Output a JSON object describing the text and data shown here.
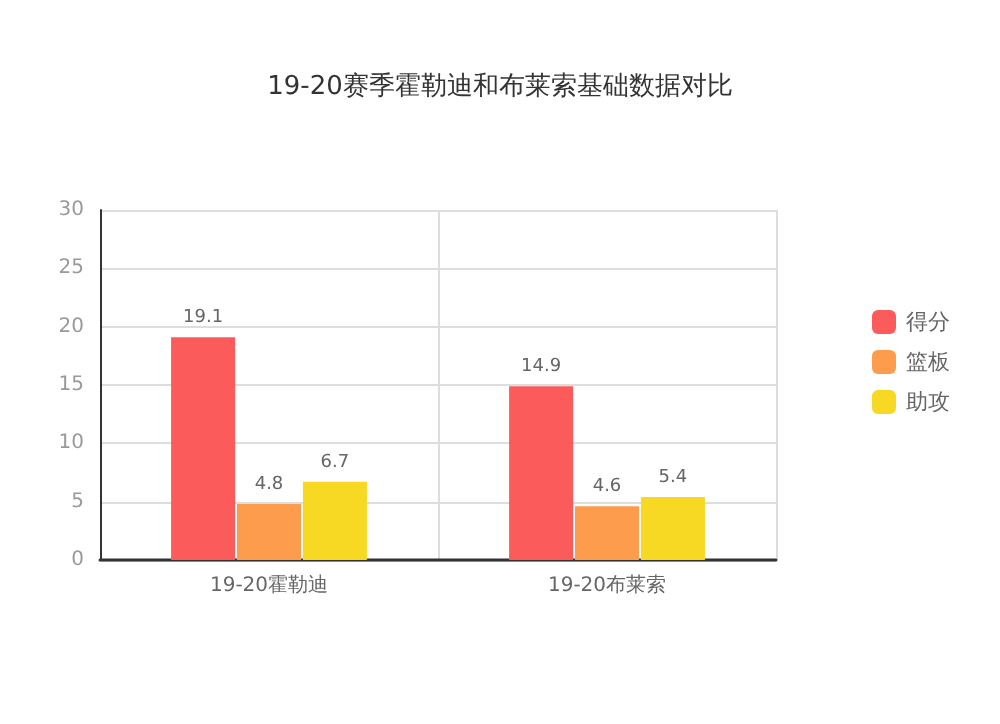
{
  "chart_data": {
    "type": "bar",
    "title": "19-20赛季霍勒迪和布莱索基础数据对比",
    "categories": [
      "19-20霍勒迪",
      "19-20布莱索"
    ],
    "series": [
      {
        "name": "得分",
        "color": "#fc5b5b",
        "values": [
          19.1,
          14.9
        ]
      },
      {
        "name": "篮板",
        "color": "#fd9c4c",
        "values": [
          4.8,
          4.6
        ]
      },
      {
        "name": "助攻",
        "color": "#f7d823",
        "values": [
          6.7,
          5.4
        ]
      }
    ],
    "ylim": [
      0,
      30
    ],
    "yticks": [
      0,
      5,
      10,
      15,
      20,
      25,
      30
    ],
    "grid": true,
    "legend": "right",
    "data_labels": true
  }
}
